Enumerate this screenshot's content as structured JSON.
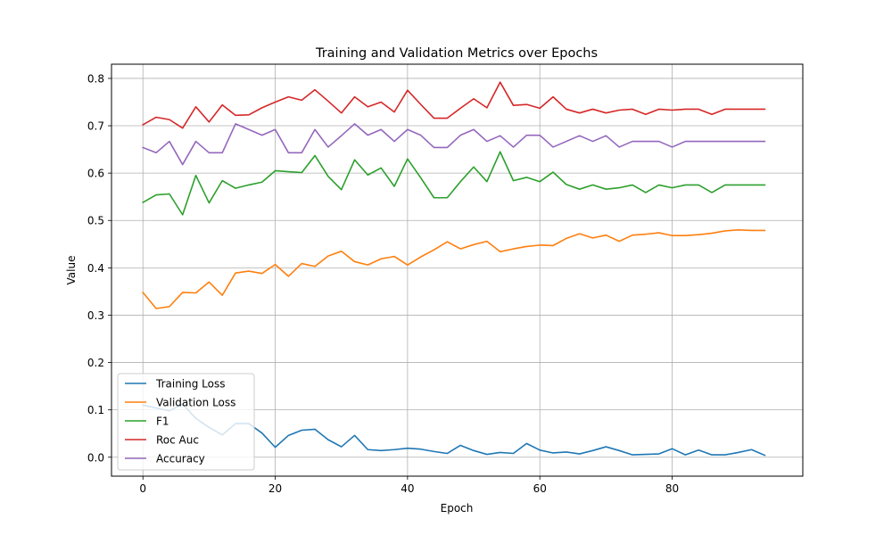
{
  "chart_data": {
    "type": "line",
    "title": "Training and Validation Metrics over Epochs",
    "xlabel": "Epoch",
    "ylabel": "Value",
    "xlim": [
      -4.75,
      99.75
    ],
    "ylim": [
      -0.04,
      0.83
    ],
    "xticks": [
      0,
      20,
      40,
      60,
      80
    ],
    "yticks": [
      0.0,
      0.1,
      0.2,
      0.3,
      0.4,
      0.5,
      0.6,
      0.7,
      0.8
    ],
    "xtick_labels": [
      "0",
      "20",
      "40",
      "60",
      "80"
    ],
    "ytick_labels": [
      "0.0",
      "0.1",
      "0.2",
      "0.3",
      "0.4",
      "0.5",
      "0.6",
      "0.7",
      "0.8"
    ],
    "grid": true,
    "legend_position": "lower-left",
    "x": [
      0,
      2,
      4,
      6,
      8,
      10,
      12,
      14,
      16,
      18,
      20,
      22,
      24,
      26,
      28,
      30,
      32,
      34,
      36,
      38,
      40,
      42,
      44,
      46,
      48,
      50,
      52,
      54,
      56,
      58,
      60,
      62,
      64,
      66,
      68,
      70,
      72,
      74,
      76,
      78,
      80,
      82,
      84,
      86,
      88,
      90,
      92,
      94
    ],
    "series": [
      {
        "name": "Training Loss",
        "color": "#1f77b4",
        "values": [
          0.11,
          0.104,
          0.098,
          0.112,
          0.082,
          0.063,
          0.047,
          0.071,
          0.071,
          0.051,
          0.021,
          0.046,
          0.057,
          0.059,
          0.037,
          0.022,
          0.046,
          0.016,
          0.014,
          0.016,
          0.019,
          0.017,
          0.012,
          0.008,
          0.025,
          0.014,
          0.006,
          0.01,
          0.008,
          0.029,
          0.015,
          0.009,
          0.011,
          0.007,
          0.014,
          0.022,
          0.014,
          0.005,
          0.006,
          0.007,
          0.018,
          0.005,
          0.015,
          0.005,
          0.005,
          0.01,
          0.016,
          0.004
        ]
      },
      {
        "name": "Validation Loss",
        "color": "#ff7f0e",
        "values": [
          0.348,
          0.314,
          0.318,
          0.348,
          0.347,
          0.37,
          0.342,
          0.389,
          0.393,
          0.388,
          0.407,
          0.382,
          0.409,
          0.403,
          0.425,
          0.435,
          0.413,
          0.406,
          0.419,
          0.424,
          0.406,
          0.423,
          0.438,
          0.455,
          0.44,
          0.449,
          0.456,
          0.434,
          0.44,
          0.445,
          0.448,
          0.447,
          0.462,
          0.472,
          0.463,
          0.469,
          0.456,
          0.469,
          0.471,
          0.474,
          0.468,
          0.468,
          0.47,
          0.473,
          0.478,
          0.48,
          0.479,
          0.479
        ]
      },
      {
        "name": "F1",
        "color": "#2ca02c",
        "values": [
          0.538,
          0.554,
          0.556,
          0.512,
          0.595,
          0.537,
          0.584,
          0.568,
          0.575,
          0.581,
          0.605,
          0.603,
          0.601,
          0.637,
          0.593,
          0.565,
          0.628,
          0.596,
          0.611,
          0.572,
          0.63,
          0.59,
          0.548,
          0.548,
          0.582,
          0.613,
          0.582,
          0.645,
          0.584,
          0.591,
          0.582,
          0.602,
          0.576,
          0.566,
          0.575,
          0.566,
          0.569,
          0.575,
          0.559,
          0.575,
          0.569,
          0.575,
          0.575,
          0.559,
          0.575,
          0.575,
          0.575,
          0.575
        ]
      },
      {
        "name": "Roc Auc",
        "color": "#d62728",
        "values": [
          0.702,
          0.718,
          0.713,
          0.695,
          0.74,
          0.708,
          0.744,
          0.722,
          0.723,
          0.738,
          0.75,
          0.761,
          0.754,
          0.776,
          0.752,
          0.727,
          0.761,
          0.74,
          0.75,
          0.729,
          0.775,
          0.745,
          0.716,
          0.716,
          0.737,
          0.757,
          0.738,
          0.792,
          0.743,
          0.745,
          0.737,
          0.761,
          0.735,
          0.727,
          0.735,
          0.727,
          0.733,
          0.735,
          0.724,
          0.735,
          0.733,
          0.735,
          0.735,
          0.724,
          0.735,
          0.735,
          0.735,
          0.735
        ]
      },
      {
        "name": "Accuracy",
        "color": "#9467bd",
        "values": [
          0.654,
          0.643,
          0.667,
          0.618,
          0.667,
          0.643,
          0.643,
          0.704,
          0.692,
          0.68,
          0.692,
          0.643,
          0.643,
          0.692,
          0.655,
          0.679,
          0.704,
          0.68,
          0.692,
          0.667,
          0.692,
          0.68,
          0.654,
          0.654,
          0.68,
          0.692,
          0.667,
          0.679,
          0.655,
          0.68,
          0.68,
          0.655,
          0.667,
          0.679,
          0.667,
          0.679,
          0.655,
          0.667,
          0.667,
          0.667,
          0.655,
          0.667,
          0.667,
          0.667,
          0.667,
          0.667,
          0.667,
          0.667
        ]
      }
    ]
  }
}
